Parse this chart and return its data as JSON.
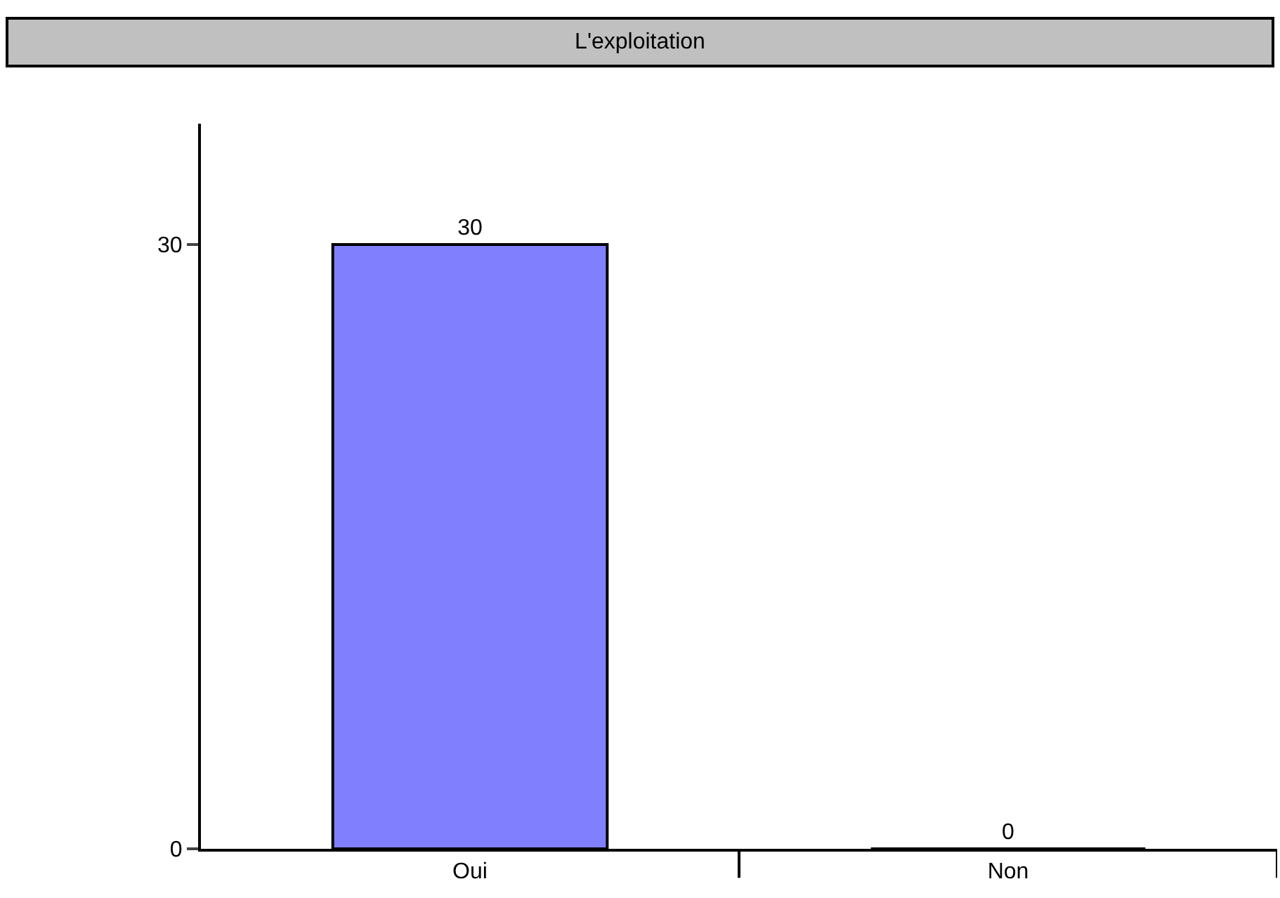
{
  "chart_data": {
    "type": "bar",
    "title": "L'exploitation",
    "categories": [
      "Oui",
      "Non"
    ],
    "values": [
      30,
      0
    ],
    "color": "#8080ff",
    "ylim": [
      0,
      36
    ],
    "yticks": [
      0,
      30
    ],
    "data_labels": true
  }
}
